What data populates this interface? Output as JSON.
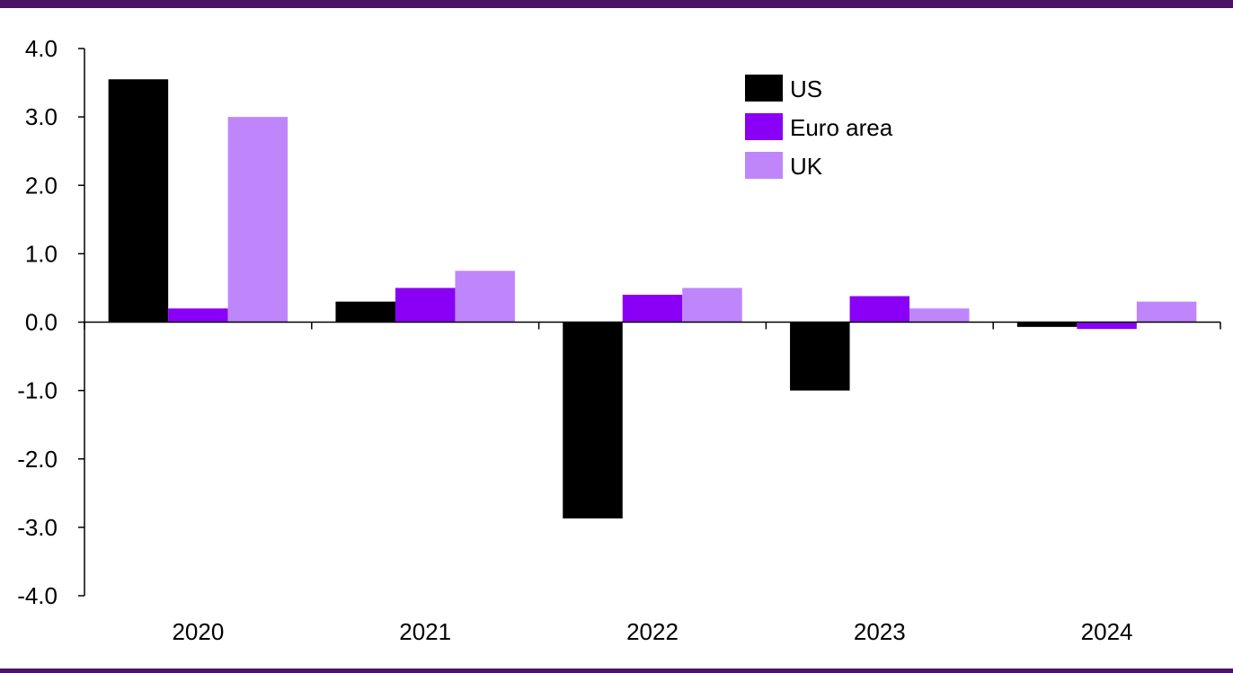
{
  "colors": {
    "rule": "#4a1366",
    "axis": "#000000",
    "us": "#000000",
    "euro_area": "#8a00f6",
    "uk": "#bf86fb"
  },
  "chart_data": {
    "type": "bar",
    "categories": [
      "2020",
      "2021",
      "2022",
      "2023",
      "2024"
    ],
    "series": [
      {
        "name": "US",
        "color": "#000000",
        "values": [
          3.55,
          0.3,
          -2.87,
          -1.0,
          -0.07
        ]
      },
      {
        "name": "Euro area",
        "color": "#8a00f6",
        "values": [
          0.2,
          0.5,
          0.4,
          0.38,
          -0.1
        ]
      },
      {
        "name": "UK",
        "color": "#bf86fb",
        "values": [
          3.0,
          0.75,
          0.5,
          0.2,
          0.3
        ]
      }
    ],
    "ylim": [
      -4.0,
      4.0
    ],
    "yticks": [
      "4.0",
      "3.0",
      "2.0",
      "1.0",
      "0.0",
      "-1.0",
      "-2.0",
      "-3.0",
      "-4.0"
    ],
    "ytick_values": [
      4,
      3,
      2,
      1,
      0,
      -1,
      -2,
      -3,
      -4
    ],
    "legend_position": "top-right",
    "grid": false
  }
}
